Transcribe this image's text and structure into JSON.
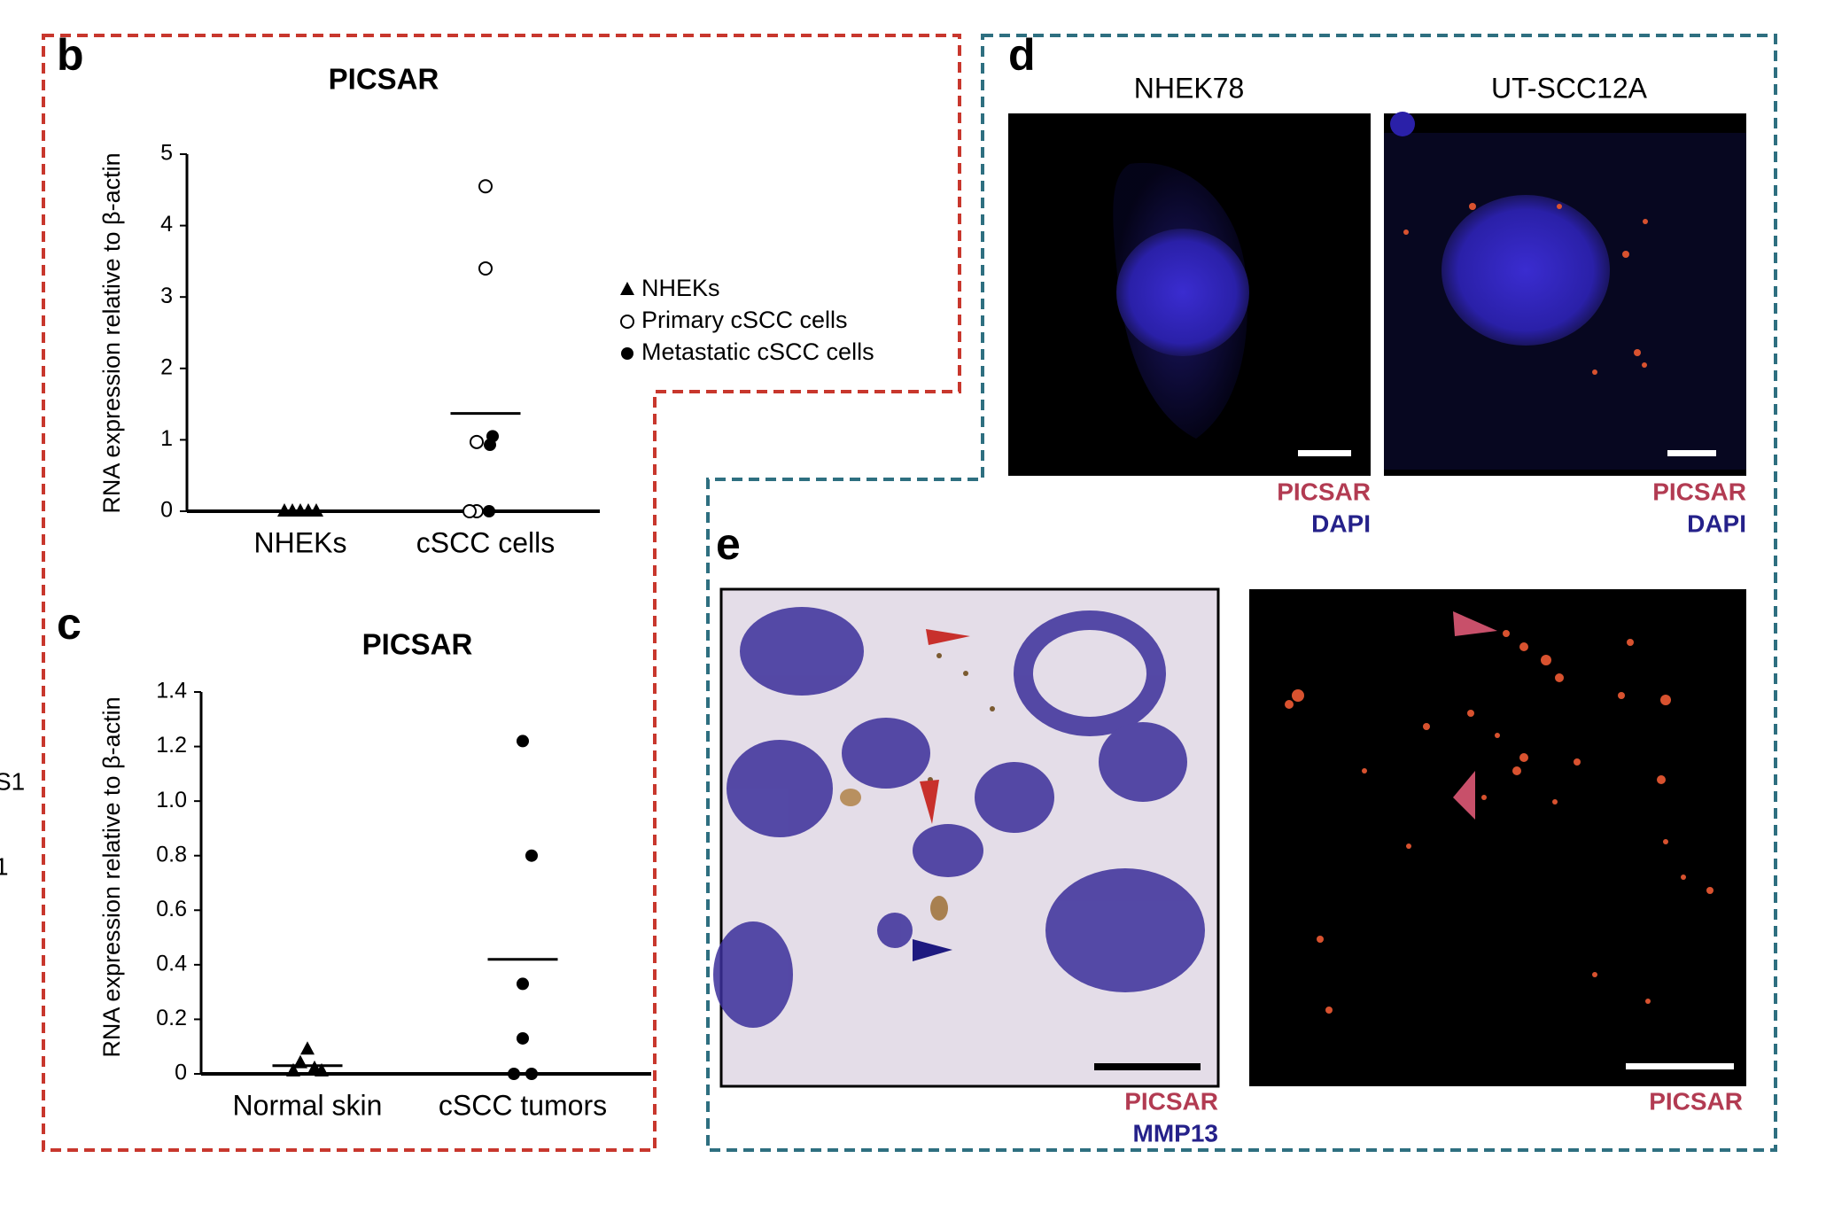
{
  "chart_data": [
    {
      "type": "scatter",
      "panel": "b",
      "title": "PICSAR",
      "y_label": "RNA expression relative to β-actin",
      "categories": [
        "NHEKs",
        "cSCC cells"
      ],
      "ylim": [
        0,
        5
      ],
      "yticks": [
        0,
        1,
        2,
        3,
        4,
        5
      ],
      "mean_values": [
        0,
        1.37
      ],
      "legend": true,
      "series": [
        {
          "name": "NHEKs",
          "marker": "triangle",
          "color": "#000000",
          "x": [
            "NHEKs",
            "NHEKs",
            "NHEKs",
            "NHEKs",
            "NHEKs"
          ],
          "values": [
            0,
            0,
            0,
            0,
            0
          ]
        },
        {
          "name": "Primary cSCC cells",
          "marker": "open-circle",
          "color": "#000000",
          "x": [
            "cSCC cells",
            "cSCC cells",
            "cSCC cells",
            "cSCC cells",
            "cSCC cells"
          ],
          "values": [
            4.55,
            3.4,
            0.97,
            0,
            0
          ]
        },
        {
          "name": "Metastatic cSCC cells",
          "marker": "circle",
          "color": "#000000",
          "x": [
            "cSCC cells",
            "cSCC cells",
            "cSCC cells"
          ],
          "values": [
            1.05,
            0.93,
            0
          ]
        }
      ]
    },
    {
      "type": "scatter",
      "panel": "c",
      "title": "PICSAR",
      "y_label": "RNA expression relative to β-actin",
      "categories": [
        "Normal skin",
        "cSCC tumors"
      ],
      "ylim": [
        0,
        1.4
      ],
      "yticks": [
        0,
        0.2,
        0.4,
        0.6,
        0.8,
        {
          "value": 1,
          "label": "1.0"
        },
        1.2,
        1.4
      ],
      "mean_values": [
        0.03,
        0.42
      ],
      "legend": false,
      "series": [
        {
          "name": "Normal skin",
          "marker": "triangle",
          "color": "#000000",
          "x": [
            "Normal skin",
            "Normal skin",
            "Normal skin",
            "Normal skin",
            "Normal skin"
          ],
          "values": [
            0.09,
            0.04,
            0.02,
            0.01,
            0.01
          ]
        },
        {
          "name": "cSCC tumors",
          "marker": "circle",
          "color": "#000000",
          "x": [
            "cSCC tumors",
            "cSCC tumors",
            "cSCC tumors",
            "cSCC tumors",
            "cSCC tumors",
            "cSCC tumors"
          ],
          "values": [
            1.22,
            0.8,
            0.33,
            0.13,
            0,
            0
          ]
        }
      ]
    }
  ],
  "panels": {
    "d": {
      "letter": "d",
      "images": [
        {
          "title": "NHEK78",
          "labels": [
            "PICSAR",
            "DAPI"
          ]
        },
        {
          "title": "UT-SCC12A",
          "labels": [
            "PICSAR",
            "DAPI"
          ]
        }
      ]
    },
    "e": {
      "letter": "e",
      "images": [
        {
          "labels": [
            "PICSAR",
            "MMP13"
          ]
        },
        {
          "labels": [
            "PICSAR"
          ]
        }
      ]
    }
  },
  "edge_fragments": [
    "S1",
    "1"
  ]
}
